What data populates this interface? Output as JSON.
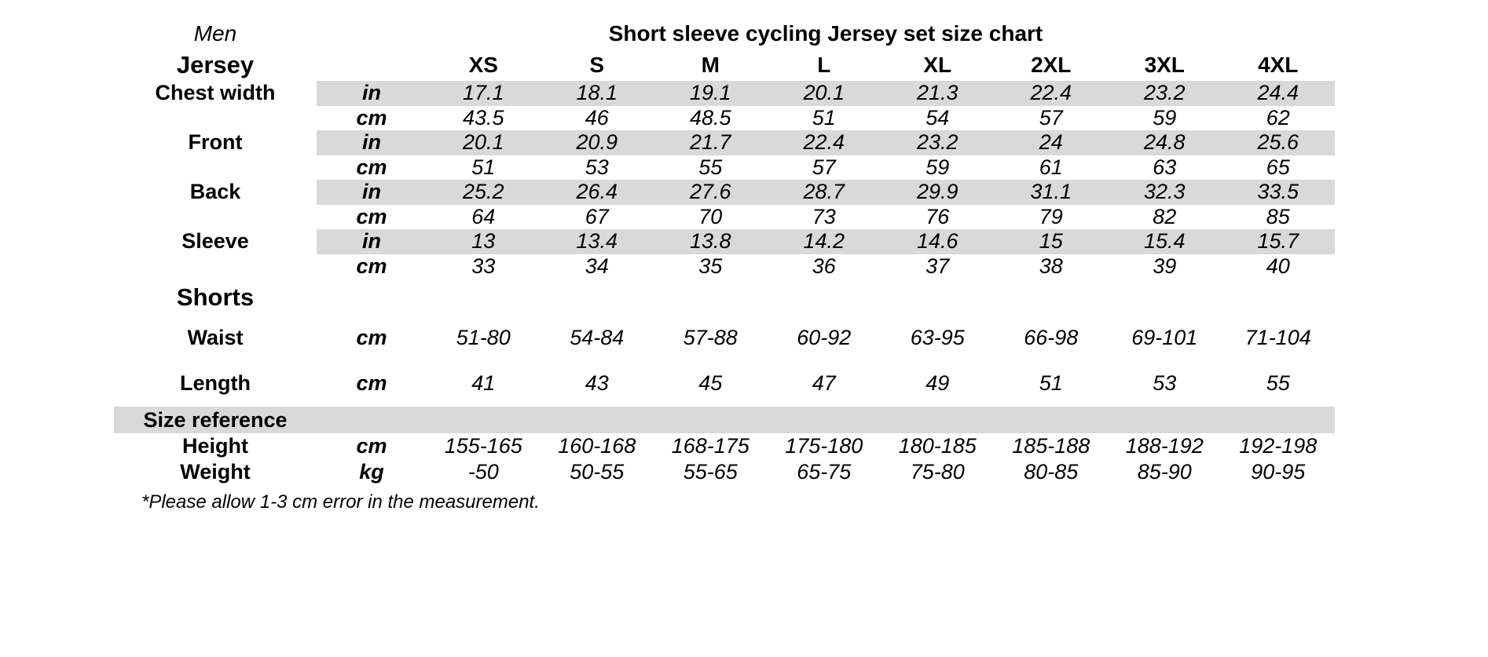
{
  "header": {
    "gender_label": "Men",
    "title": "Short sleeve cycling Jersey set size chart"
  },
  "table": {
    "size_headers": [
      "XS",
      "S",
      "M",
      "L",
      "XL",
      "2XL",
      "3XL",
      "4XL"
    ],
    "jersey": {
      "section_label": "Jersey",
      "rows": [
        {
          "label": "Chest width",
          "unit_rows": [
            {
              "unit": "in",
              "values": [
                "17.1",
                "18.1",
                "19.1",
                "20.1",
                "21.3",
                "22.4",
                "23.2",
                "24.4"
              ]
            },
            {
              "unit": "cm",
              "values": [
                "43.5",
                "46",
                "48.5",
                "51",
                "54",
                "57",
                "59",
                "62"
              ]
            }
          ]
        },
        {
          "label": "Front",
          "unit_rows": [
            {
              "unit": "in",
              "values": [
                "20.1",
                "20.9",
                "21.7",
                "22.4",
                "23.2",
                "24",
                "24.8",
                "25.6"
              ]
            },
            {
              "unit": "cm",
              "values": [
                "51",
                "53",
                "55",
                "57",
                "59",
                "61",
                "63",
                "65"
              ]
            }
          ]
        },
        {
          "label": "Back",
          "unit_rows": [
            {
              "unit": "in",
              "values": [
                "25.2",
                "26.4",
                "27.6",
                "28.7",
                "29.9",
                "31.1",
                "32.3",
                "33.5"
              ]
            },
            {
              "unit": "cm",
              "values": [
                "64",
                "67",
                "70",
                "73",
                "76",
                "79",
                "82",
                "85"
              ]
            }
          ]
        },
        {
          "label": "Sleeve",
          "unit_rows": [
            {
              "unit": "in",
              "values": [
                "13",
                "13.4",
                "13.8",
                "14.2",
                "14.6",
                "15",
                "15.4",
                "15.7"
              ]
            },
            {
              "unit": "cm",
              "values": [
                "33",
                "34",
                "35",
                "36",
                "37",
                "38",
                "39",
                "40"
              ]
            }
          ]
        }
      ]
    },
    "shorts": {
      "section_label": "Shorts",
      "rows": [
        {
          "label": "Waist",
          "unit": "cm",
          "values": [
            "51-80",
            "54-84",
            "57-88",
            "60-92",
            "63-95",
            "66-98",
            "69-101",
            "71-104"
          ]
        },
        {
          "label": "Length",
          "unit": "cm",
          "values": [
            "41",
            "43",
            "45",
            "47",
            "49",
            "51",
            "53",
            "55"
          ]
        }
      ]
    },
    "size_reference": {
      "section_label": "Size reference",
      "rows": [
        {
          "label": "Height",
          "unit": "cm",
          "values": [
            "155-165",
            "160-168",
            "168-175",
            "175-180",
            "180-185",
            "185-188",
            "188-192",
            "192-198"
          ]
        },
        {
          "label": "Weight",
          "unit": "kg",
          "values": [
            "-50",
            "50-55",
            "55-65",
            "65-75",
            "75-80",
            "80-85",
            "85-90",
            "90-95"
          ]
        }
      ]
    }
  },
  "footnote": {
    "text": "*Please allow 1-3 cm error in the measurement.",
    "band_color": "#d9d9d9",
    "text_color": "#000000"
  }
}
